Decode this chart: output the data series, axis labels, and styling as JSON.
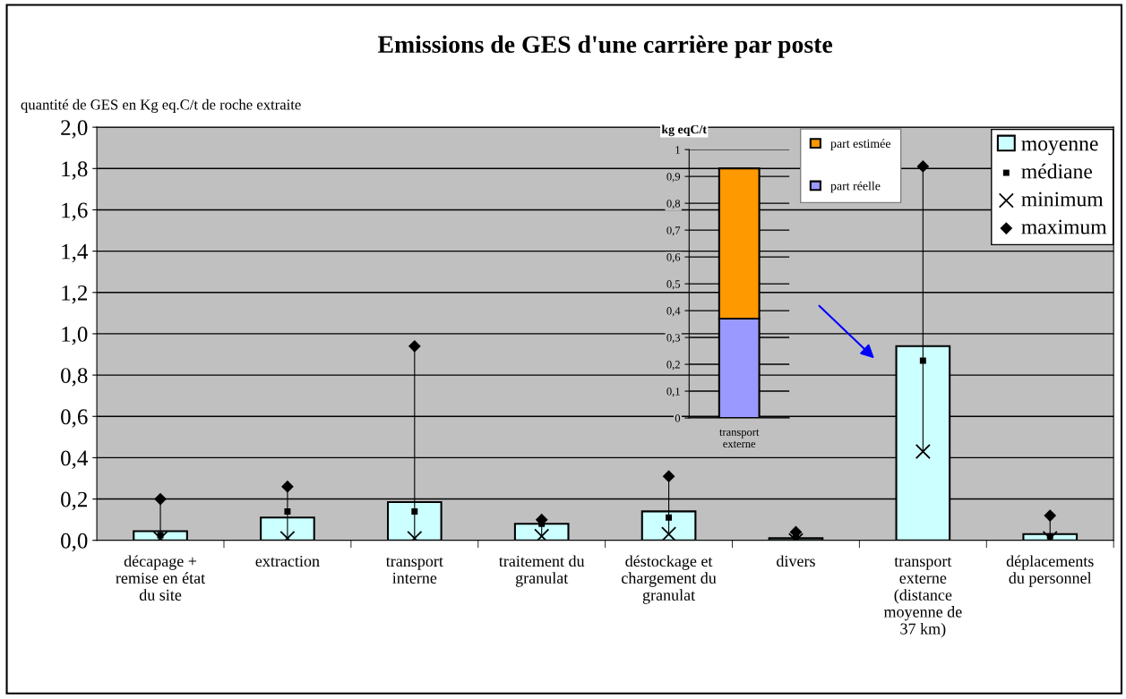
{
  "chart_data": [
    {
      "type": "bar",
      "title": "Emissions de GES d'une carrière par poste",
      "ylabel": "quantité de GES en Kg eq.C/t de roche extraite",
      "categories": [
        "décapage +\nremise en état\ndu site",
        "extraction",
        "transport\ninterne",
        "traitement du\ngranulat",
        "déstockage et\nchargement du\ngranulat",
        "divers",
        "transport\nexterne\n(distance\nmoyenne de\n37 km)",
        "déplacements\ndu personnel"
      ],
      "series": [
        {
          "name": "moyenne",
          "type": "bar",
          "color": "#ccffff",
          "values": [
            0.044,
            0.11,
            0.185,
            0.08,
            0.14,
            0.01,
            0.94,
            0.03
          ]
        },
        {
          "name": "médiane",
          "type": "scatter",
          "marker": "square",
          "color": "#000000",
          "values": [
            0.025,
            0.14,
            0.14,
            0.08,
            0.11,
            0.01,
            0.87,
            0.02
          ]
        },
        {
          "name": "minimum",
          "type": "scatter",
          "marker": "cross",
          "color": "#000000",
          "values": [
            0.01,
            0.01,
            0.01,
            0.02,
            0.03,
            0.0,
            0.43,
            0.01
          ]
        },
        {
          "name": "maximum",
          "type": "scatter",
          "marker": "diamond",
          "color": "#000000",
          "values": [
            0.2,
            0.26,
            0.94,
            0.1,
            0.31,
            0.04,
            1.81,
            0.12
          ]
        }
      ],
      "ylim": [
        0,
        2
      ],
      "yticks": [
        {
          "value": 0,
          "label": "0,0"
        },
        {
          "value": 0.2,
          "label": "0,2"
        },
        {
          "value": 0.4,
          "label": "0,4"
        },
        {
          "value": 0.6,
          "label": "0,6"
        },
        {
          "value": 0.8,
          "label": "0,8"
        },
        {
          "value": 1.0,
          "label": "1,0"
        },
        {
          "value": 1.2,
          "label": "1,2"
        },
        {
          "value": 1.4,
          "label": "1,4"
        },
        {
          "value": 1.6,
          "label": "1,6"
        },
        {
          "value": 1.8,
          "label": "1,8"
        },
        {
          "value": 2.0,
          "label": "2,0"
        }
      ],
      "grid": "y",
      "legend": "top right"
    },
    {
      "type": "bar",
      "stacked": true,
      "ylabel": "kg eqC/t",
      "categories": [
        "transport\nexterne"
      ],
      "series": [
        {
          "name": "part réelle",
          "color": "#9999ff",
          "values": [
            0.37
          ]
        },
        {
          "name": "part estimée",
          "color": "#ff9900",
          "values": [
            0.56
          ]
        }
      ],
      "ylim": [
        0,
        1
      ],
      "yticks": [
        0,
        {
          "value": 0.1,
          "label": "0,1"
        },
        {
          "value": 0.2,
          "label": "0,2"
        },
        {
          "value": 0.3,
          "label": "0,3"
        },
        {
          "value": 0.4,
          "label": "0,4"
        },
        {
          "value": 0.5,
          "label": "0,5"
        },
        {
          "value": 0.6,
          "label": "0,6"
        },
        {
          "value": 0.7,
          "label": "0,7"
        },
        {
          "value": 0.8,
          "label": "0,8"
        },
        {
          "value": 0.9,
          "label": "0,9"
        },
        1
      ],
      "grid": "y",
      "legend": "top right"
    }
  ]
}
